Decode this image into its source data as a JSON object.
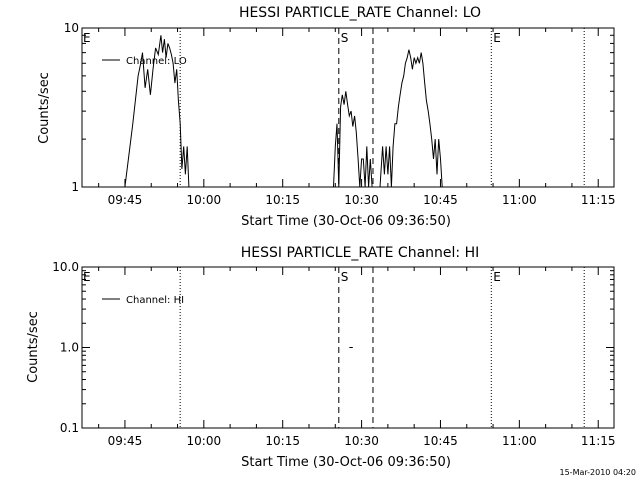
{
  "footer_stamp": "15-Mar-2010 04:20",
  "colors": {
    "line": "#000000",
    "background": "#ffffff"
  },
  "chart_data": [
    {
      "type": "line",
      "title": "HESSI PARTICLE_RATE Channel: LO",
      "xlabel": "Start Time (30-Oct-06 09:36:50)",
      "ylabel": "Counts/sec",
      "yscale": "log",
      "ylim": [
        1,
        10
      ],
      "yticks": [
        "1",
        "10"
      ],
      "xlim": [
        "09:36:50",
        "11:18:00"
      ],
      "xticks": [
        "09:45",
        "10:00",
        "10:15",
        "10:30",
        "10:45",
        "11:00",
        "11:15"
      ],
      "legend": {
        "label": "Channel: LO",
        "position": "top-left"
      },
      "markers": [
        {
          "label": "E",
          "time": "09:36:50",
          "style": "none"
        },
        {
          "label": "",
          "time": "09:55:30",
          "style": "dotted"
        },
        {
          "label": "S",
          "time": "10:25:40",
          "style": "dashed"
        },
        {
          "label": "",
          "time": "10:32:10",
          "style": "dashed"
        },
        {
          "label": "E",
          "time": "10:54:40",
          "style": "dotted"
        },
        {
          "label": "",
          "time": "11:12:20",
          "style": "dotted"
        }
      ],
      "series": [
        {
          "name": "Channel: LO",
          "x": [
            "09:44:00",
            "09:45:00",
            "09:46:30",
            "09:47:30",
            "09:48:00",
            "09:48:20",
            "09:48:50",
            "09:49:20",
            "09:49:50",
            "09:50:20",
            "09:50:50",
            "09:51:20",
            "09:51:50",
            "09:52:10",
            "09:52:30",
            "09:52:50",
            "09:53:10",
            "09:53:30",
            "09:53:50",
            "09:54:10",
            "09:54:30",
            "09:54:50",
            "09:55:10",
            "09:55:30",
            "09:55:50",
            "09:56:10",
            "09:56:30",
            "09:56:50",
            "09:57:10",
            "09:57:30"
          ],
          "y": [
            1,
            1,
            2.5,
            5,
            6,
            7,
            4.2,
            5.5,
            3.8,
            5.5,
            7.5,
            6.8,
            9,
            7,
            8.5,
            6.5,
            8,
            7.5,
            6.8,
            6,
            4.5,
            5.5,
            3.5,
            2.5,
            1.3,
            1.8,
            1.2,
            1.8,
            1,
            1
          ]
        },
        {
          "name": "Channel: LO",
          "x": [
            "10:24:40",
            "10:25:00",
            "10:25:20",
            "10:25:40",
            "10:26:00",
            "10:26:20",
            "10:26:40",
            "10:27:00",
            "10:27:20",
            "10:27:40",
            "10:28:00",
            "10:28:20",
            "10:28:40",
            "10:29:00",
            "10:29:20",
            "10:29:40",
            "10:30:00",
            "10:30:20",
            "10:30:40",
            "10:31:00",
            "10:31:20",
            "10:31:40",
            "10:32:00"
          ],
          "y": [
            1,
            1.8,
            2.5,
            1,
            3.2,
            3.8,
            3.3,
            4,
            3.3,
            2.8,
            3,
            2.4,
            2.8,
            2.2,
            1.5,
            1,
            1.5,
            1.5,
            1,
            1.8,
            1,
            1.5,
            1
          ]
        },
        {
          "name": "Channel: LO",
          "x": [
            "10:33:30",
            "10:34:00",
            "10:34:20",
            "10:34:40",
            "10:35:00",
            "10:35:20",
            "10:35:40",
            "10:36:00",
            "10:36:20",
            "10:36:40",
            "10:37:00",
            "10:37:20",
            "10:37:40",
            "10:38:00",
            "10:38:20",
            "10:38:40",
            "10:39:00",
            "10:39:20",
            "10:39:40",
            "10:40:00",
            "10:40:20",
            "10:40:40",
            "10:41:00",
            "10:41:20",
            "10:41:40",
            "10:42:00",
            "10:42:20",
            "10:42:40",
            "10:43:00",
            "10:43:20",
            "10:43:40",
            "10:44:00",
            "10:44:20",
            "10:44:40",
            "10:45:00",
            "10:45:20"
          ],
          "y": [
            1,
            1.8,
            1.2,
            1.8,
            1.2,
            1.8,
            1,
            1.8,
            2.5,
            2.5,
            3.2,
            3.8,
            4.5,
            5,
            6,
            6.5,
            7.3,
            6.5,
            5.5,
            6.5,
            6,
            6.5,
            6,
            7,
            6,
            4.5,
            3.5,
            3,
            2.5,
            2,
            1.5,
            2,
            1.2,
            2,
            1.5,
            1
          ]
        }
      ]
    },
    {
      "type": "line",
      "title": "HESSI PARTICLE_RATE Channel: HI",
      "xlabel": "Start Time (30-Oct-06 09:36:50)",
      "ylabel": "Counts/sec",
      "yscale": "log",
      "ylim": [
        0.1,
        10
      ],
      "yticks": [
        "0.1",
        "1.0",
        "10.0"
      ],
      "xlim": [
        "09:36:50",
        "11:18:00"
      ],
      "xticks": [
        "09:45",
        "10:00",
        "10:15",
        "10:30",
        "10:45",
        "11:00",
        "11:15"
      ],
      "legend": {
        "label": "Channel: HI",
        "position": "top-left"
      },
      "markers": [
        {
          "label": "E",
          "time": "09:36:50",
          "style": "none"
        },
        {
          "label": "",
          "time": "09:55:30",
          "style": "dotted"
        },
        {
          "label": "S",
          "time": "10:25:40",
          "style": "dashed"
        },
        {
          "label": "",
          "time": "10:32:10",
          "style": "dashed"
        },
        {
          "label": "E",
          "time": "10:54:40",
          "style": "dotted"
        },
        {
          "label": "",
          "time": "11:12:20",
          "style": "dotted"
        }
      ],
      "series": [
        {
          "name": "Channel: HI",
          "x": [
            "10:27:40",
            "10:28:20"
          ],
          "y": [
            1,
            1
          ]
        }
      ]
    }
  ]
}
